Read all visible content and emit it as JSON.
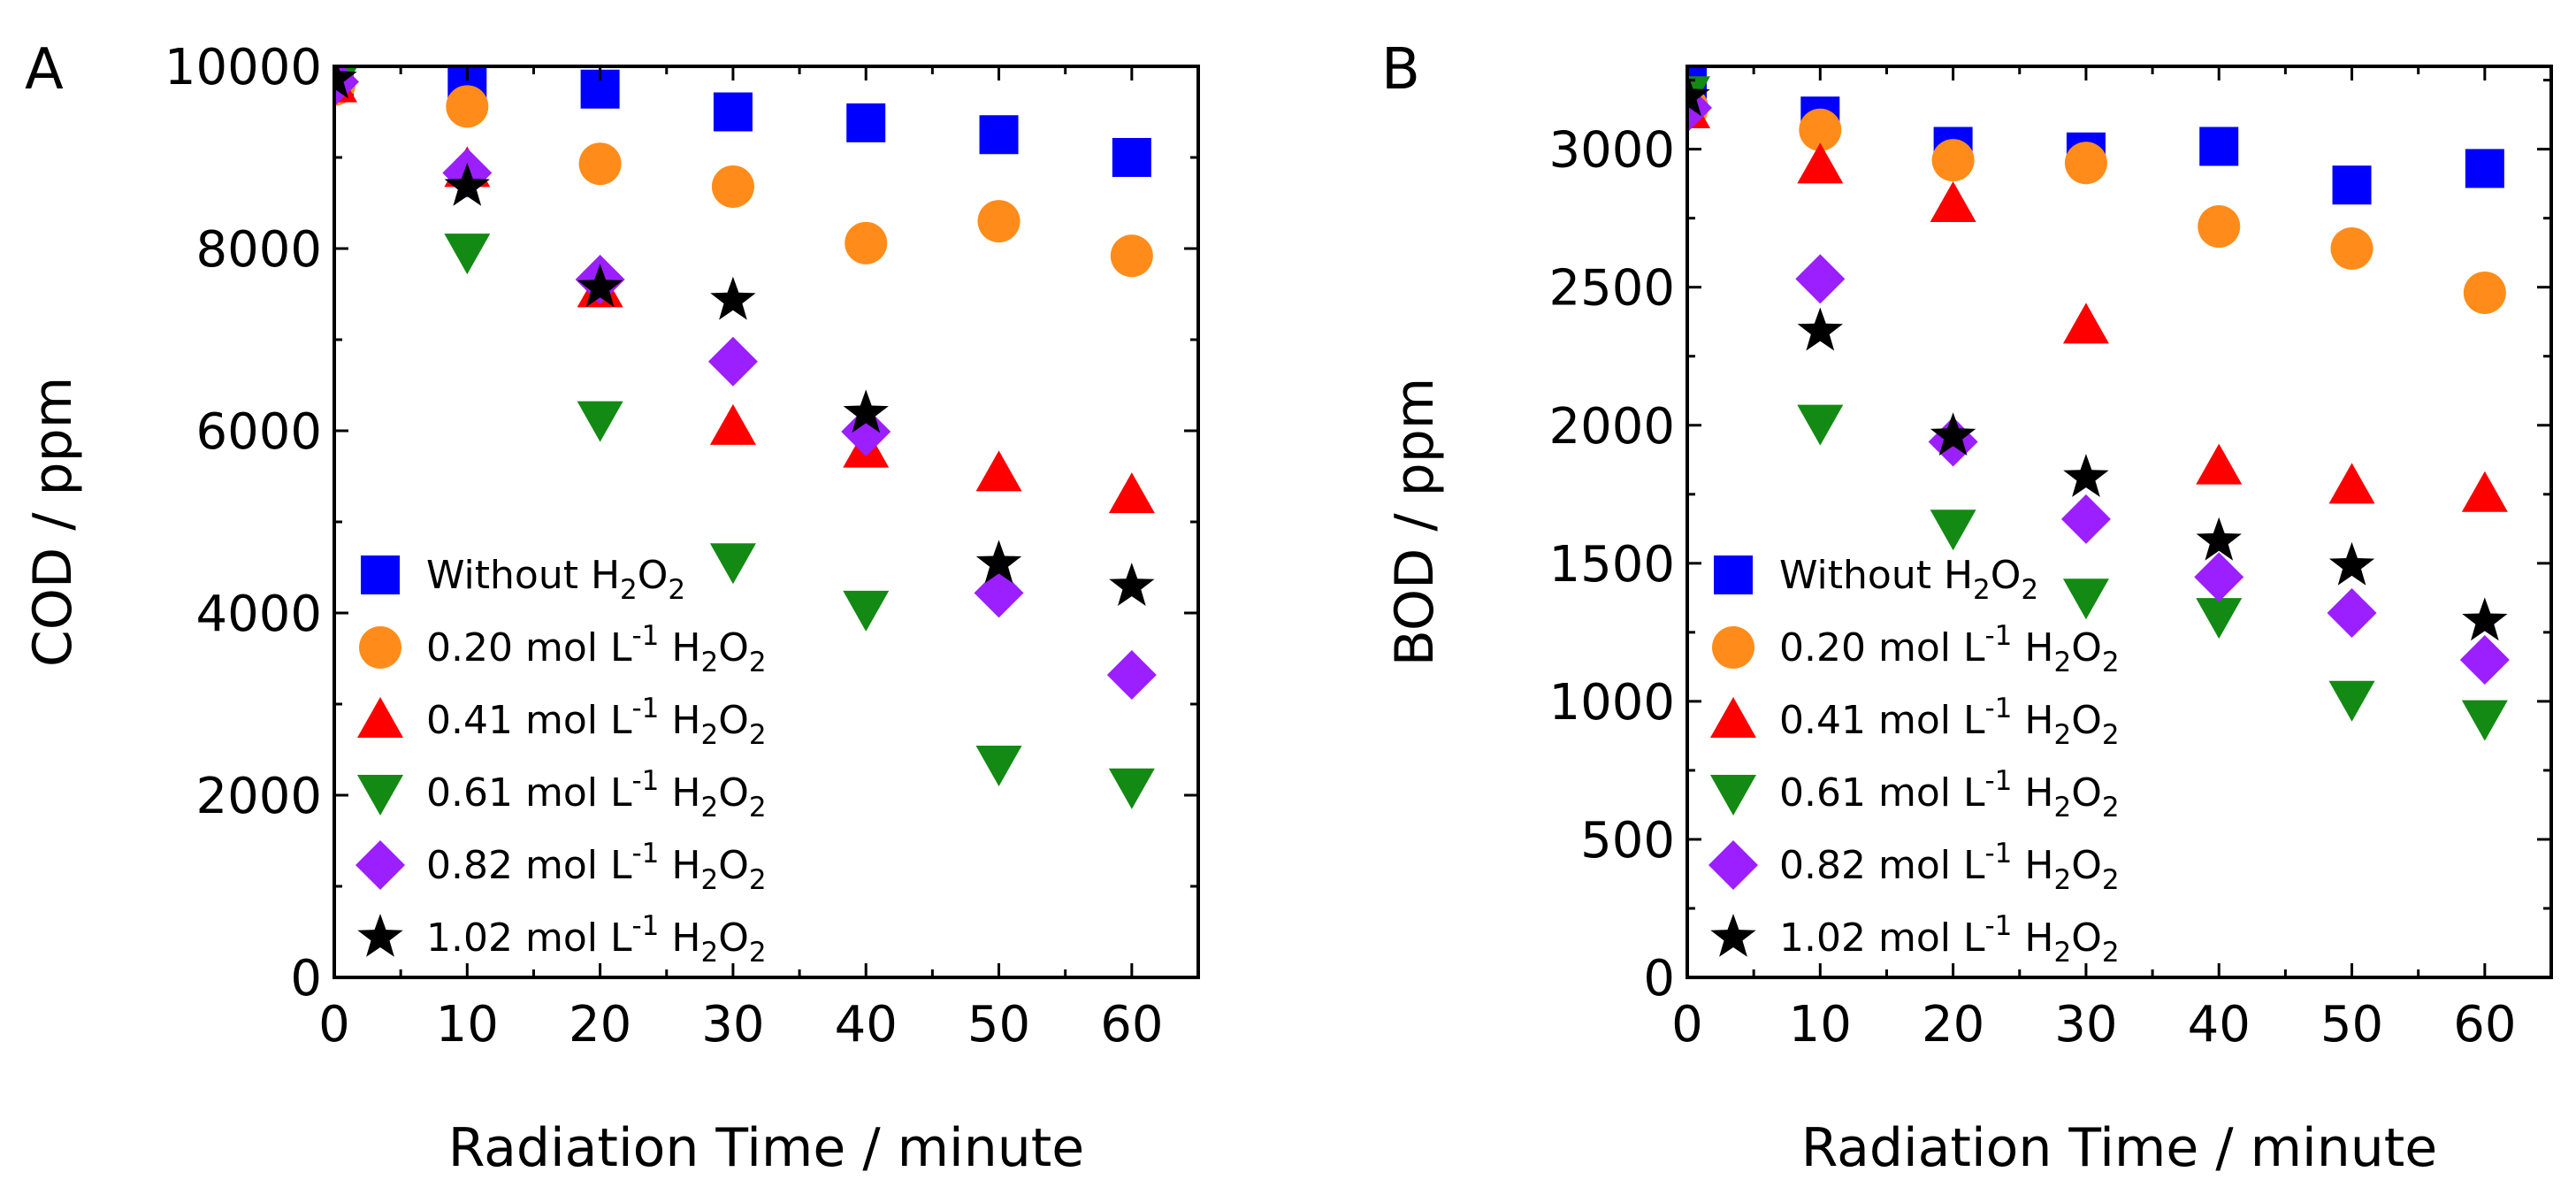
{
  "chart_data": [
    {
      "type": "scatter",
      "panel_label": "A",
      "xlabel": "Radiation Time / minute",
      "ylabel": "COD / ppm",
      "xlim": [
        0,
        65
      ],
      "ylim": [
        0,
        10000
      ],
      "xticks": [
        0,
        10,
        20,
        30,
        40,
        50,
        60
      ],
      "yticks": [
        0,
        2000,
        4000,
        6000,
        8000,
        10000
      ],
      "legend_position": "lower-left",
      "x": [
        0,
        10,
        20,
        30,
        40,
        50,
        60
      ],
      "series": [
        {
          "name": "Without H2O2",
          "legend": [
            "Without H",
            "2",
            "O",
            "2",
            ""
          ],
          "marker": "square",
          "color": "#0000ff",
          "values": [
            9850,
            9850,
            9750,
            9500,
            9380,
            9250,
            9000
          ]
        },
        {
          "name": "0.20 mol L-1 H2O2",
          "legend": [
            "0.20 mol L",
            "-1",
            " H",
            "2",
            "O",
            "2"
          ],
          "marker": "circle",
          "color": "#ff8c1a",
          "values": [
            9800,
            9560,
            8930,
            8680,
            8060,
            8300,
            7920
          ]
        },
        {
          "name": "0.41 mol L-1 H2O2",
          "legend": [
            "0.41 mol L",
            "-1",
            " H",
            "2",
            "O",
            "2"
          ],
          "marker": "triangle-up",
          "color": "#ff0000",
          "values": [
            9800,
            8870,
            7550,
            6040,
            5790,
            5530,
            5290
          ]
        },
        {
          "name": "0.61 mol L-1 H2O2",
          "legend": [
            "0.61 mol L",
            "-1",
            " H",
            "2",
            "O",
            "2"
          ],
          "marker": "triangle-down",
          "color": "#138a13",
          "values": [
            9800,
            7970,
            6130,
            4570,
            4050,
            2350,
            2100
          ]
        },
        {
          "name": "0.82 mol L-1 H2O2",
          "legend": [
            "0.82 mol L",
            "-1",
            " H",
            "2",
            "O",
            "2"
          ],
          "marker": "diamond",
          "color": "#9b1fff",
          "values": [
            9830,
            8830,
            7660,
            6760,
            5990,
            4220,
            3320
          ]
        },
        {
          "name": "1.02 mol L-1 H2O2",
          "legend": [
            "1.02 mol L",
            "-1",
            " H",
            "2",
            "O",
            "2"
          ],
          "marker": "star",
          "color": "#000000",
          "values": [
            9860,
            8680,
            7570,
            7430,
            6190,
            4540,
            4290
          ]
        }
      ]
    },
    {
      "type": "scatter",
      "panel_label": "B",
      "xlabel": "Radiation Time / minute",
      "ylabel": "BOD / ppm",
      "xlim": [
        0,
        65
      ],
      "ylim": [
        0,
        3300
      ],
      "xticks": [
        0,
        10,
        20,
        30,
        40,
        50,
        60
      ],
      "yticks": [
        0,
        500,
        1000,
        1500,
        2000,
        2500,
        3000
      ],
      "legend_position": "lower-left",
      "x": [
        0,
        10,
        20,
        30,
        40,
        50,
        60
      ],
      "series": [
        {
          "name": "Without H2O2",
          "legend": [
            "Without H",
            "2",
            "O",
            "2",
            ""
          ],
          "marker": "square",
          "color": "#0000ff",
          "values": [
            3230,
            3120,
            3010,
            2990,
            3010,
            2870,
            2930
          ]
        },
        {
          "name": "0.20 mol L-1 H2O2",
          "legend": [
            "0.20 mol L",
            "-1",
            " H",
            "2",
            "O",
            "2"
          ],
          "marker": "circle",
          "color": "#ff8c1a",
          "values": [
            3150,
            3070,
            2960,
            2950,
            2720,
            2640,
            2480
          ]
        },
        {
          "name": "0.41 mol L-1 H2O2",
          "legend": [
            "0.41 mol L",
            "-1",
            " H",
            "2",
            "O",
            "2"
          ],
          "marker": "triangle-up",
          "color": "#ff0000",
          "values": [
            3140,
            2940,
            2800,
            2360,
            1850,
            1780,
            1750
          ]
        },
        {
          "name": "0.61 mol L-1 H2O2",
          "legend": [
            "0.61 mol L",
            "-1",
            " H",
            "2",
            "O",
            "2"
          ],
          "marker": "triangle-down",
          "color": "#138a13",
          "values": [
            3200,
            2010,
            1630,
            1380,
            1310,
            1010,
            940
          ]
        },
        {
          "name": "0.82 mol L-1 H2O2",
          "legend": [
            "0.82 mol L",
            "-1",
            " H",
            "2",
            "O",
            "2"
          ],
          "marker": "diamond",
          "color": "#9b1fff",
          "values": [
            3150,
            2530,
            1940,
            1660,
            1450,
            1320,
            1150
          ]
        },
        {
          "name": "1.02 mol L-1 H2O2",
          "legend": [
            "1.02 mol L",
            "-1",
            " H",
            "2",
            "O",
            "2"
          ],
          "marker": "star",
          "color": "#000000",
          "values": [
            3190,
            2340,
            1960,
            1810,
            1580,
            1490,
            1290
          ]
        }
      ]
    }
  ]
}
